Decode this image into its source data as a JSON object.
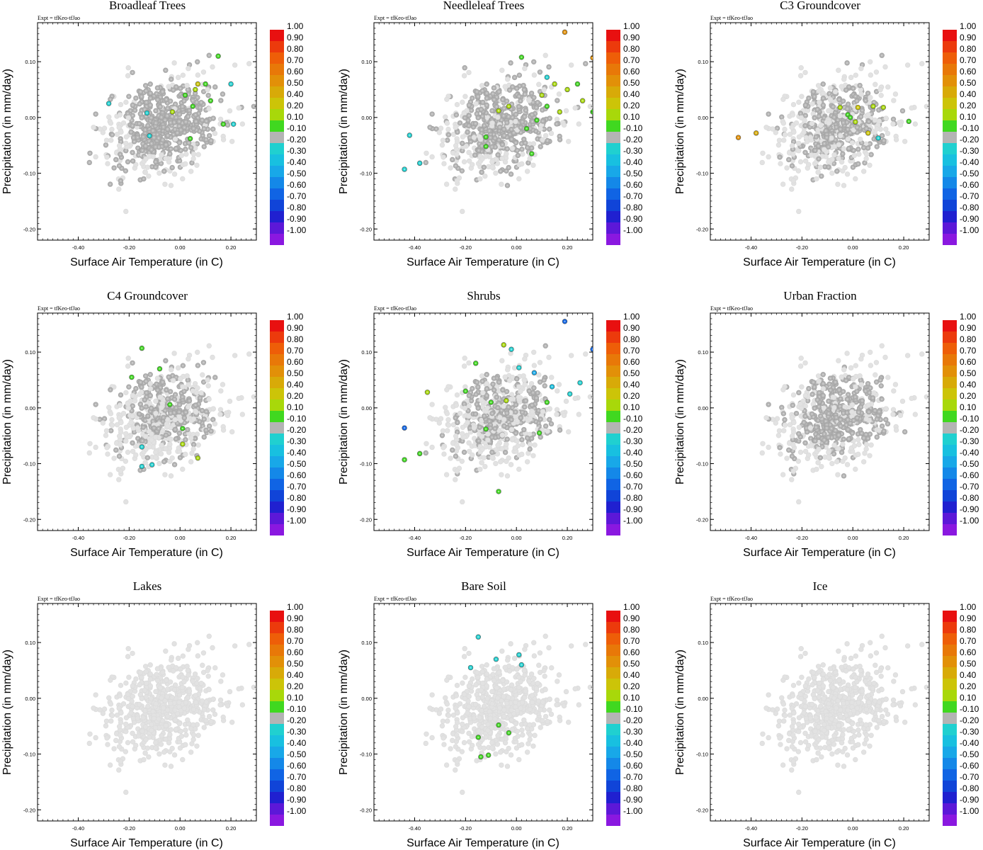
{
  "figure": {
    "experiment_label": "Expt = tfKeo-tfJao",
    "xlabel": "Surface Air Temperature (in C)",
    "ylabel": "Precipitation (in mm/day)",
    "x_ticks": [
      "-0.40",
      "-0.20",
      "0.00",
      "0.20"
    ],
    "y_ticks": [
      "0.10",
      "0.00",
      "-0.10",
      "-0.20"
    ],
    "colorbar": {
      "labels": [
        "1.00",
        "0.90",
        "0.80",
        "0.70",
        "0.60",
        "0.50",
        "0.40",
        "0.20",
        "0.10",
        "-0.10",
        "-0.20",
        "-0.30",
        "-0.40",
        "-0.50",
        "-0.60",
        "-0.70",
        "-0.80",
        "-0.90",
        "-1.00"
      ],
      "colors": [
        "#e81010",
        "#ec3a0c",
        "#ee5e08",
        "#e87808",
        "#e29008",
        "#d8aa08",
        "#ccc408",
        "#a8d80a",
        "#40d820",
        "#b4b4b4",
        "#20d0d0",
        "#18c0e0",
        "#18a8e8",
        "#1488e8",
        "#1064e4",
        "#1044d8",
        "#2020d0",
        "#5c18d8",
        "#8a18e0"
      ]
    }
  },
  "chart_data": [
    {
      "type": "scatter",
      "title": "Broadleaf Trees",
      "xlabel": "Surface Air Temperature (in C)",
      "ylabel": "Precipitation (in mm/day)",
      "xlim": [
        -0.56,
        0.3
      ],
      "ylim": [
        -0.22,
        0.17
      ],
      "highlight_points": [
        {
          "x": -0.28,
          "y": 0.025,
          "v": -0.2
        },
        {
          "x": -0.13,
          "y": 0.008,
          "v": -0.2
        },
        {
          "x": -0.12,
          "y": -0.033,
          "v": -0.2
        },
        {
          "x": -0.03,
          "y": 0.01,
          "v": 0.2
        },
        {
          "x": 0.02,
          "y": 0.04,
          "v": 0.1
        },
        {
          "x": 0.04,
          "y": -0.038,
          "v": 0.1
        },
        {
          "x": 0.05,
          "y": 0.02,
          "v": 0.1
        },
        {
          "x": 0.06,
          "y": 0.05,
          "v": 0.3
        },
        {
          "x": 0.07,
          "y": 0.06,
          "v": 0.4
        },
        {
          "x": 0.1,
          "y": 0.06,
          "v": 0.1
        },
        {
          "x": 0.12,
          "y": 0.03,
          "v": 0.1
        },
        {
          "x": 0.15,
          "y": 0.11,
          "v": 0.1
        },
        {
          "x": 0.17,
          "y": -0.012,
          "v": 0.1
        },
        {
          "x": 0.2,
          "y": 0.06,
          "v": -0.2
        },
        {
          "x": 0.21,
          "y": -0.012,
          "v": -0.2
        }
      ]
    },
    {
      "type": "scatter",
      "title": "Needleleaf Trees",
      "xlabel": "Surface Air Temperature (in C)",
      "ylabel": "Precipitation (in mm/day)",
      "xlim": [
        -0.56,
        0.3
      ],
      "ylim": [
        -0.22,
        0.17
      ],
      "highlight_points": [
        {
          "x": -0.44,
          "y": -0.093,
          "v": -0.2
        },
        {
          "x": -0.42,
          "y": -0.032,
          "v": -0.2
        },
        {
          "x": -0.38,
          "y": -0.082,
          "v": -0.2
        },
        {
          "x": -0.12,
          "y": -0.035,
          "v": 0.1
        },
        {
          "x": -0.12,
          "y": -0.052,
          "v": 0.1
        },
        {
          "x": -0.07,
          "y": 0.012,
          "v": 0.2
        },
        {
          "x": -0.03,
          "y": 0.02,
          "v": 0.2
        },
        {
          "x": 0.02,
          "y": 0.108,
          "v": 0.1
        },
        {
          "x": 0.04,
          "y": -0.02,
          "v": 0.1
        },
        {
          "x": 0.06,
          "y": -0.065,
          "v": 0.1
        },
        {
          "x": 0.08,
          "y": -0.005,
          "v": 0.1
        },
        {
          "x": 0.1,
          "y": 0.04,
          "v": 0.3
        },
        {
          "x": 0.12,
          "y": 0.072,
          "v": -0.2
        },
        {
          "x": 0.12,
          "y": 0.02,
          "v": 0.1
        },
        {
          "x": 0.15,
          "y": 0.06,
          "v": 0.3
        },
        {
          "x": 0.17,
          "y": 0.01,
          "v": 0.3
        },
        {
          "x": 0.19,
          "y": 0.153,
          "v": 0.6
        },
        {
          "x": 0.2,
          "y": 0.05,
          "v": 0.3
        },
        {
          "x": 0.24,
          "y": 0.06,
          "v": 0.1
        },
        {
          "x": 0.26,
          "y": 0.03,
          "v": 0.3
        },
        {
          "x": 0.3,
          "y": 0.107,
          "v": 0.6
        },
        {
          "x": 0.3,
          "y": 0.01,
          "v": 0.1
        }
      ]
    },
    {
      "type": "scatter",
      "title": "C3 Groundcover",
      "xlabel": "Surface Air Temperature (in C)",
      "ylabel": "Precipitation (in mm/day)",
      "xlim": [
        -0.56,
        0.3
      ],
      "ylim": [
        -0.22,
        0.17
      ],
      "highlight_points": [
        {
          "x": -0.45,
          "y": -0.036,
          "v": 0.6
        },
        {
          "x": -0.38,
          "y": -0.028,
          "v": 0.5
        },
        {
          "x": -0.05,
          "y": 0.018,
          "v": 0.3
        },
        {
          "x": -0.02,
          "y": 0.005,
          "v": 0.1
        },
        {
          "x": -0.01,
          "y": 0.0,
          "v": 0.1
        },
        {
          "x": 0.01,
          "y": -0.008,
          "v": 0.3
        },
        {
          "x": 0.02,
          "y": 0.018,
          "v": 0.4
        },
        {
          "x": 0.06,
          "y": -0.028,
          "v": 0.4
        },
        {
          "x": 0.08,
          "y": 0.02,
          "v": 0.3
        },
        {
          "x": 0.1,
          "y": -0.037,
          "v": -0.2
        },
        {
          "x": 0.12,
          "y": 0.018,
          "v": 0.3
        },
        {
          "x": 0.22,
          "y": -0.007,
          "v": 0.1
        }
      ]
    },
    {
      "type": "scatter",
      "title": "C4 Groundcover",
      "xlabel": "Surface Air Temperature (in C)",
      "ylabel": "Precipitation (in mm/day)",
      "xlim": [
        -0.56,
        0.3
      ],
      "ylim": [
        -0.22,
        0.17
      ],
      "highlight_points": [
        {
          "x": -0.19,
          "y": 0.055,
          "v": 0.1
        },
        {
          "x": -0.15,
          "y": 0.107,
          "v": 0.1
        },
        {
          "x": -0.15,
          "y": -0.07,
          "v": -0.2
        },
        {
          "x": -0.15,
          "y": -0.105,
          "v": -0.2
        },
        {
          "x": -0.11,
          "y": -0.102,
          "v": -0.2
        },
        {
          "x": -0.08,
          "y": 0.07,
          "v": 0.1
        },
        {
          "x": -0.04,
          "y": 0.006,
          "v": 0.1
        },
        {
          "x": 0.01,
          "y": -0.037,
          "v": 0.1
        },
        {
          "x": 0.01,
          "y": -0.065,
          "v": 0.3
        },
        {
          "x": 0.07,
          "y": -0.09,
          "v": 0.3
        }
      ]
    },
    {
      "type": "scatter",
      "title": "Shrubs",
      "xlabel": "Surface Air Temperature (in C)",
      "ylabel": "Precipitation (in mm/day)",
      "xlim": [
        -0.56,
        0.3
      ],
      "ylim": [
        -0.22,
        0.17
      ],
      "highlight_points": [
        {
          "x": -0.44,
          "y": -0.036,
          "v": -0.6
        },
        {
          "x": -0.44,
          "y": -0.093,
          "v": 0.1
        },
        {
          "x": -0.38,
          "y": -0.082,
          "v": 0.1
        },
        {
          "x": -0.35,
          "y": 0.028,
          "v": 0.3
        },
        {
          "x": -0.2,
          "y": 0.03,
          "v": 0.1
        },
        {
          "x": -0.16,
          "y": 0.08,
          "v": 0.1
        },
        {
          "x": -0.12,
          "y": -0.038,
          "v": 0.1
        },
        {
          "x": -0.1,
          "y": 0.01,
          "v": 0.1
        },
        {
          "x": -0.07,
          "y": -0.15,
          "v": 0.1
        },
        {
          "x": -0.05,
          "y": 0.113,
          "v": 0.2
        },
        {
          "x": -0.04,
          "y": 0.013,
          "v": 0.3
        },
        {
          "x": -0.02,
          "y": 0.105,
          "v": -0.2
        },
        {
          "x": 0.01,
          "y": 0.072,
          "v": -0.2
        },
        {
          "x": 0.07,
          "y": 0.063,
          "v": -0.4
        },
        {
          "x": 0.09,
          "y": -0.045,
          "v": 0.1
        },
        {
          "x": 0.12,
          "y": 0.01,
          "v": 0.1
        },
        {
          "x": 0.14,
          "y": 0.038,
          "v": -0.3
        },
        {
          "x": 0.19,
          "y": 0.155,
          "v": -0.6
        },
        {
          "x": 0.21,
          "y": 0.025,
          "v": -0.2
        },
        {
          "x": 0.25,
          "y": 0.045,
          "v": -0.2
        },
        {
          "x": 0.3,
          "y": 0.105,
          "v": -0.6
        },
        {
          "x": 0.31,
          "y": 0.01,
          "v": -0.2
        }
      ]
    },
    {
      "type": "scatter",
      "title": "Urban Fraction",
      "xlabel": "Surface Air Temperature (in C)",
      "ylabel": "Precipitation (in mm/day)",
      "xlim": [
        -0.56,
        0.3
      ],
      "ylim": [
        -0.22,
        0.17
      ],
      "highlight_points": []
    },
    {
      "type": "scatter",
      "title": "Lakes",
      "xlabel": "Surface Air Temperature (in C)",
      "ylabel": "Precipitation (in mm/day)",
      "xlim": [
        -0.56,
        0.3
      ],
      "ylim": [
        -0.22,
        0.17
      ],
      "highlight_points": []
    },
    {
      "type": "scatter",
      "title": "Bare Soil",
      "xlabel": "Surface Air Temperature (in C)",
      "ylabel": "Precipitation (in mm/day)",
      "xlim": [
        -0.56,
        0.3
      ],
      "ylim": [
        -0.22,
        0.17
      ],
      "highlight_points": [
        {
          "x": -0.18,
          "y": 0.055,
          "v": -0.2
        },
        {
          "x": -0.15,
          "y": 0.11,
          "v": -0.2
        },
        {
          "x": -0.15,
          "y": -0.07,
          "v": 0.1
        },
        {
          "x": -0.14,
          "y": -0.105,
          "v": 0.1
        },
        {
          "x": -0.11,
          "y": -0.102,
          "v": 0.1
        },
        {
          "x": -0.08,
          "y": 0.07,
          "v": -0.2
        },
        {
          "x": -0.07,
          "y": -0.048,
          "v": 0.1
        },
        {
          "x": -0.03,
          "y": -0.062,
          "v": 0.1
        },
        {
          "x": 0.01,
          "y": 0.078,
          "v": -0.2
        },
        {
          "x": 0.02,
          "y": 0.06,
          "v": -0.2
        }
      ]
    },
    {
      "type": "scatter",
      "title": "Ice",
      "xlabel": "Surface Air Temperature (in C)",
      "ylabel": "Precipitation (in mm/day)",
      "xlim": [
        -0.56,
        0.3
      ],
      "ylim": [
        -0.22,
        0.17
      ],
      "highlight_points": []
    }
  ]
}
